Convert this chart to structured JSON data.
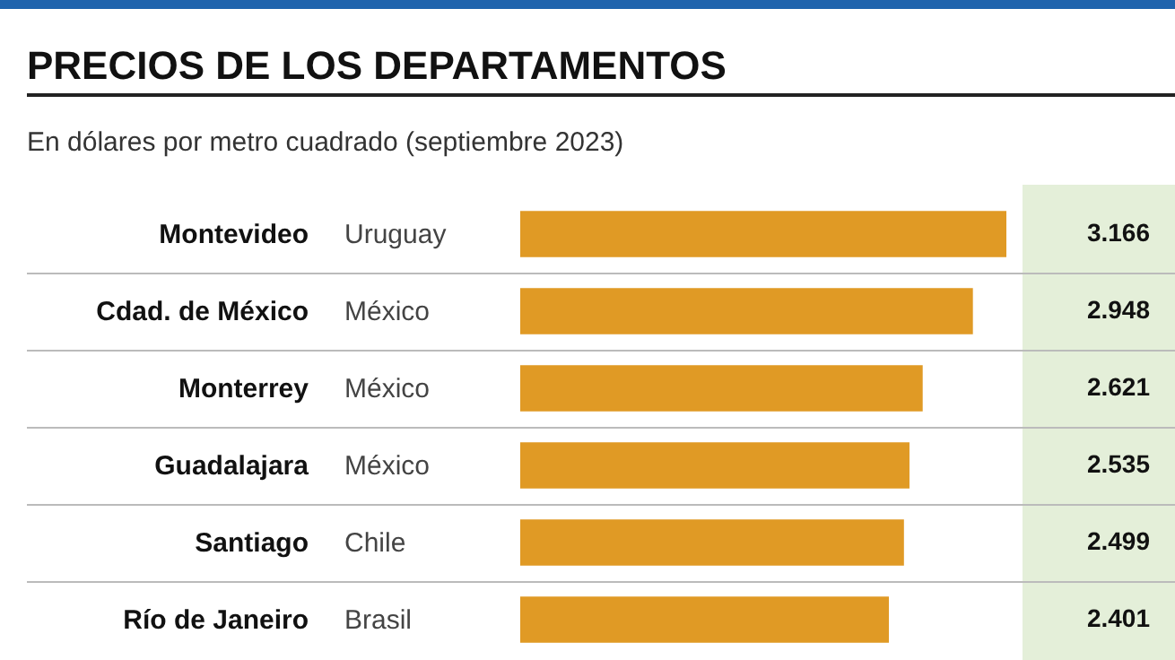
{
  "chart_data": {
    "type": "bar",
    "orientation": "horizontal",
    "title": "PRECIOS DE LOS DEPARTAMENTOS",
    "subtitle": "En dólares por metro cuadrado (septiembre 2023)",
    "categories": [
      "Montevideo",
      "Cdad. de México",
      "Monterrey",
      "Guadalajara",
      "Santiago",
      "Río de Janeiro"
    ],
    "values": [
      3166,
      2948,
      2621,
      2535,
      2499,
      2401
    ],
    "value_labels": [
      "3.166",
      "2.948",
      "2.621",
      "2.535",
      "2.499",
      "2.401"
    ],
    "color": "#e09a25",
    "annotations": [
      "Uruguay",
      "México",
      "México",
      "México",
      "Chile",
      "Brasil"
    ]
  }
}
